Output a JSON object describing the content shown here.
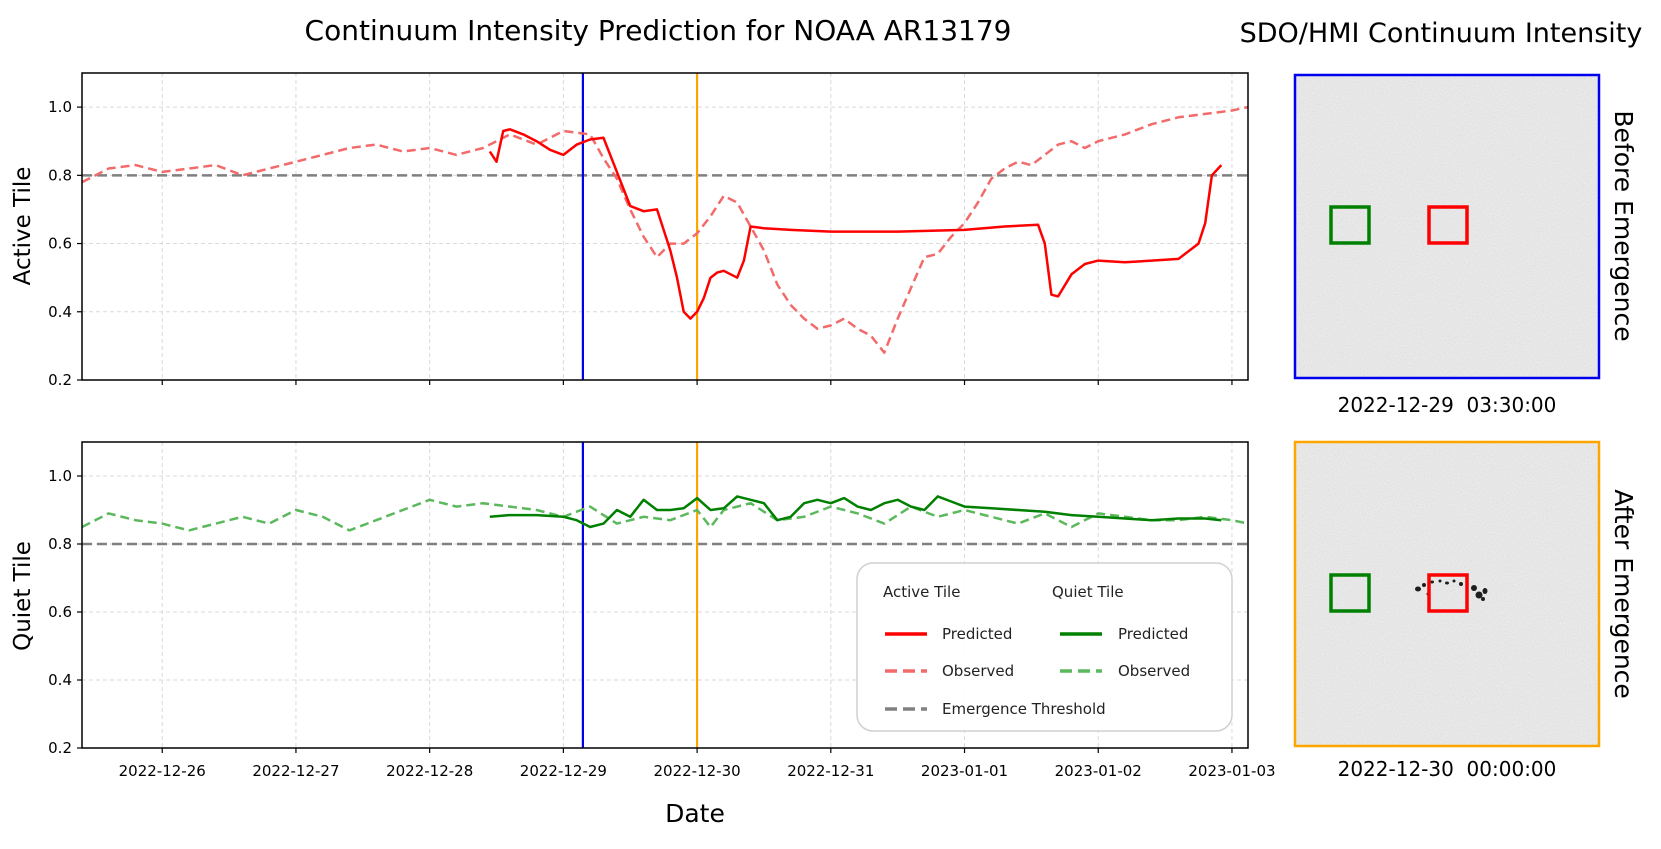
{
  "figure": {
    "title": "Continuum Intensity Prediction for NOAA AR13179",
    "xlabel": "Date"
  },
  "panel_right": {
    "title": "SDO/HMI Continuum Intensity",
    "before": {
      "label": "Before Emergence",
      "timestamp": "2022-12-29  03:30:00",
      "color": "#0000ee"
    },
    "after": {
      "label": "After Emergence",
      "timestamp": "2022-12-30  00:00:00",
      "color": "#ffa500"
    }
  },
  "legend": {
    "active_header": "Active Tile",
    "quiet_header": "Quiet Tile",
    "predicted": "Predicted",
    "observed": "Observed",
    "threshold": "Emergence Threshold"
  },
  "colors": {
    "active": "#ff0000",
    "active_observed": "#f36a6a",
    "quiet": "#008000",
    "quiet_observed": "#5cb85c",
    "threshold": "#808080",
    "before_line": "#0000ee",
    "after_line": "#ffa500"
  },
  "chart_data": [
    {
      "type": "line",
      "ylabel": "Active Tile",
      "ylim": [
        0.2,
        1.1
      ],
      "yticks": [
        "0.2",
        "0.4",
        "0.6",
        "0.8",
        "1.0"
      ],
      "xlim": [
        -0.6,
        8.12
      ],
      "xticks": [],
      "threshold": 0.8,
      "vlines": [
        3.146,
        4.0
      ],
      "series": [
        {
          "name": "Predicted",
          "style": "solid",
          "x": [
            2.45,
            2.5,
            2.55,
            2.6,
            2.7,
            2.8,
            2.9,
            3.0,
            3.1,
            3.2,
            3.3,
            3.4,
            3.5,
            3.6,
            3.7,
            3.8,
            3.85,
            3.9,
            3.95,
            4.0,
            4.05,
            4.1,
            4.15,
            4.2,
            4.3,
            4.35,
            4.4,
            4.5,
            4.7,
            5.0,
            5.3,
            5.5,
            6.0,
            6.3,
            6.55,
            6.6,
            6.65,
            6.7,
            6.8,
            6.9,
            7.0,
            7.2,
            7.4,
            7.6,
            7.75,
            7.8,
            7.85,
            7.92
          ],
          "y": [
            0.87,
            0.84,
            0.93,
            0.935,
            0.92,
            0.9,
            0.875,
            0.86,
            0.89,
            0.905,
            0.91,
            0.81,
            0.71,
            0.695,
            0.7,
            0.58,
            0.5,
            0.4,
            0.38,
            0.4,
            0.44,
            0.5,
            0.515,
            0.52,
            0.5,
            0.55,
            0.65,
            0.645,
            0.64,
            0.635,
            0.635,
            0.635,
            0.64,
            0.65,
            0.655,
            0.6,
            0.45,
            0.445,
            0.51,
            0.54,
            0.55,
            0.545,
            0.55,
            0.555,
            0.6,
            0.66,
            0.8,
            0.83
          ]
        },
        {
          "name": "Observed",
          "style": "dashed",
          "x": [
            -0.6,
            -0.4,
            -0.2,
            0.0,
            0.2,
            0.4,
            0.6,
            0.8,
            1.0,
            1.2,
            1.4,
            1.6,
            1.8,
            2.0,
            2.2,
            2.4,
            2.6,
            2.8,
            3.0,
            3.2,
            3.3,
            3.4,
            3.5,
            3.6,
            3.7,
            3.8,
            3.9,
            4.0,
            4.1,
            4.2,
            4.3,
            4.4,
            4.5,
            4.6,
            4.7,
            4.8,
            4.9,
            5.0,
            5.1,
            5.2,
            5.3,
            5.4,
            5.5,
            5.6,
            5.7,
            5.8,
            5.9,
            6.0,
            6.1,
            6.2,
            6.3,
            6.4,
            6.5,
            6.6,
            6.7,
            6.8,
            6.9,
            7.0,
            7.2,
            7.4,
            7.6,
            7.8,
            8.0,
            8.12
          ],
          "y": [
            0.78,
            0.82,
            0.83,
            0.81,
            0.82,
            0.83,
            0.8,
            0.82,
            0.84,
            0.86,
            0.88,
            0.89,
            0.87,
            0.88,
            0.86,
            0.88,
            0.92,
            0.89,
            0.93,
            0.92,
            0.85,
            0.79,
            0.7,
            0.62,
            0.56,
            0.6,
            0.6,
            0.63,
            0.68,
            0.74,
            0.72,
            0.65,
            0.58,
            0.48,
            0.42,
            0.38,
            0.35,
            0.36,
            0.38,
            0.35,
            0.33,
            0.28,
            0.38,
            0.47,
            0.56,
            0.57,
            0.62,
            0.66,
            0.72,
            0.79,
            0.82,
            0.84,
            0.83,
            0.86,
            0.89,
            0.9,
            0.88,
            0.9,
            0.92,
            0.95,
            0.97,
            0.98,
            0.99,
            1.0
          ]
        }
      ]
    },
    {
      "type": "line",
      "ylabel": "Quiet Tile",
      "ylim": [
        0.2,
        1.1
      ],
      "yticks": [
        "0.2",
        "0.4",
        "0.6",
        "0.8",
        "1.0"
      ],
      "xlim": [
        -0.6,
        8.12
      ],
      "xticks": [
        "2022-12-26",
        "2022-12-27",
        "2022-12-28",
        "2022-12-29",
        "2022-12-30",
        "2022-12-31",
        "2023-01-01",
        "2023-01-02",
        "2023-01-03"
      ],
      "threshold": 0.8,
      "vlines": [
        3.146,
        4.0
      ],
      "series": [
        {
          "name": "Predicted",
          "style": "solid",
          "x": [
            2.45,
            2.6,
            2.8,
            3.0,
            3.1,
            3.2,
            3.3,
            3.4,
            3.5,
            3.6,
            3.7,
            3.8,
            3.9,
            4.0,
            4.1,
            4.2,
            4.3,
            4.4,
            4.5,
            4.6,
            4.7,
            4.8,
            4.9,
            5.0,
            5.1,
            5.2,
            5.3,
            5.4,
            5.5,
            5.6,
            5.7,
            5.8,
            5.9,
            6.0,
            6.2,
            6.4,
            6.6,
            6.8,
            7.0,
            7.2,
            7.4,
            7.6,
            7.8,
            7.92
          ],
          "y": [
            0.88,
            0.885,
            0.885,
            0.88,
            0.87,
            0.85,
            0.86,
            0.9,
            0.88,
            0.93,
            0.9,
            0.9,
            0.905,
            0.935,
            0.9,
            0.905,
            0.94,
            0.93,
            0.92,
            0.87,
            0.88,
            0.92,
            0.93,
            0.92,
            0.935,
            0.91,
            0.9,
            0.92,
            0.93,
            0.91,
            0.9,
            0.94,
            0.925,
            0.91,
            0.905,
            0.9,
            0.895,
            0.885,
            0.88,
            0.875,
            0.87,
            0.875,
            0.875,
            0.87
          ]
        },
        {
          "name": "Observed",
          "style": "dashed",
          "x": [
            -0.6,
            -0.4,
            -0.2,
            0.0,
            0.2,
            0.4,
            0.6,
            0.8,
            1.0,
            1.2,
            1.4,
            1.6,
            1.8,
            2.0,
            2.2,
            2.4,
            2.6,
            2.8,
            3.0,
            3.2,
            3.4,
            3.6,
            3.8,
            4.0,
            4.1,
            4.2,
            4.4,
            4.6,
            4.8,
            5.0,
            5.2,
            5.4,
            5.6,
            5.8,
            6.0,
            6.2,
            6.4,
            6.6,
            6.8,
            7.0,
            7.2,
            7.4,
            7.6,
            7.8,
            8.0,
            8.12
          ],
          "y": [
            0.85,
            0.89,
            0.87,
            0.86,
            0.84,
            0.86,
            0.88,
            0.86,
            0.9,
            0.88,
            0.84,
            0.87,
            0.9,
            0.93,
            0.91,
            0.92,
            0.91,
            0.9,
            0.88,
            0.91,
            0.86,
            0.88,
            0.87,
            0.9,
            0.85,
            0.9,
            0.92,
            0.87,
            0.88,
            0.91,
            0.89,
            0.86,
            0.91,
            0.88,
            0.9,
            0.88,
            0.86,
            0.89,
            0.85,
            0.89,
            0.88,
            0.87,
            0.87,
            0.88,
            0.87,
            0.86
          ]
        }
      ]
    }
  ]
}
